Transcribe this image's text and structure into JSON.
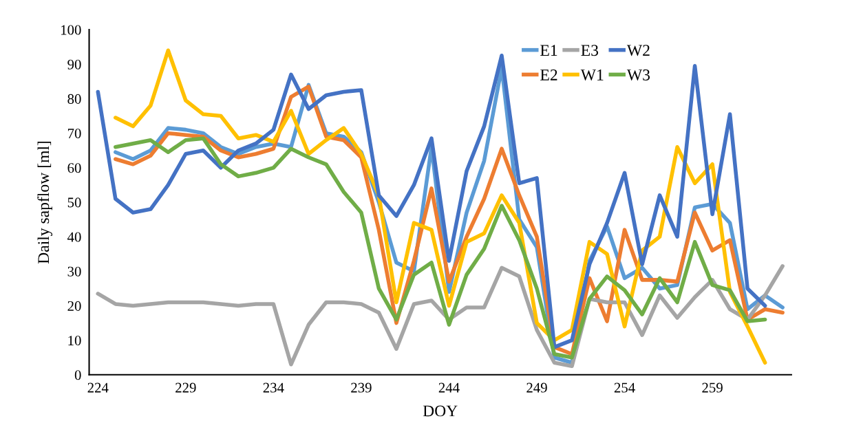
{
  "chart_data": {
    "type": "line",
    "xlabel": "DOY",
    "ylabel": "Daily sapflow [ml]",
    "x": [
      224,
      225,
      226,
      227,
      228,
      229,
      230,
      231,
      232,
      233,
      234,
      235,
      236,
      237,
      238,
      239,
      240,
      241,
      242,
      243,
      244,
      245,
      246,
      247,
      248,
      249,
      250,
      251,
      252,
      253,
      254,
      255,
      256,
      257,
      258,
      259,
      260,
      261,
      262,
      263
    ],
    "xlim": [
      223.5,
      263.5
    ],
    "xticks": [
      224,
      229,
      234,
      239,
      244,
      249,
      254,
      259
    ],
    "ylim": [
      0,
      100
    ],
    "yticks": [
      0,
      10,
      20,
      30,
      40,
      50,
      60,
      70,
      80,
      90,
      100
    ],
    "grid": false,
    "legend": "top right",
    "marker": "none",
    "line_style": "solid",
    "series": [
      {
        "name": "E1",
        "color": "#5b9bd5",
        "values": [
          null,
          64.5,
          62.5,
          65,
          71.5,
          71,
          70,
          66,
          64,
          66,
          67,
          66,
          84,
          70,
          69,
          64.5,
          50,
          32.5,
          30,
          66,
          24,
          47,
          62,
          89,
          45,
          37,
          5,
          3.5,
          33,
          43,
          28,
          31,
          25,
          26,
          48.5,
          49.5,
          44,
          19,
          23,
          19.5
        ]
      },
      {
        "name": "E2",
        "color": "#ed7d31",
        "values": [
          null,
          62.5,
          61,
          63.5,
          70,
          69.5,
          69,
          65,
          63,
          64,
          65.5,
          80.5,
          83.5,
          69,
          68,
          63,
          42,
          15,
          33,
          54,
          27,
          40,
          51,
          65.5,
          52,
          40,
          8,
          6,
          28,
          15.5,
          42,
          27.5,
          27.5,
          27,
          47,
          36,
          39,
          16,
          19,
          18
        ]
      },
      {
        "name": "E3",
        "color": "#a5a5a5",
        "values": [
          23.5,
          20.5,
          20,
          20.5,
          21,
          21,
          21,
          20.5,
          20,
          20.5,
          20.5,
          3,
          14.5,
          21,
          21,
          20.5,
          18,
          7.5,
          20.5,
          21.5,
          16,
          19.5,
          19.5,
          31,
          28.5,
          13,
          3.5,
          2.5,
          22,
          21,
          21,
          11.5,
          23,
          16.5,
          22.5,
          27.5,
          19,
          16,
          23,
          31.5
        ]
      },
      {
        "name": "W1",
        "color": "#ffc000",
        "values": [
          null,
          74.5,
          72,
          78,
          94,
          79.5,
          75.5,
          75,
          68.5,
          69.5,
          67.5,
          76.5,
          64,
          68,
          71.5,
          64,
          52,
          21,
          44,
          42,
          20,
          38.5,
          41,
          52,
          44,
          15,
          10,
          13,
          38.5,
          35,
          14,
          36,
          40,
          66,
          55.5,
          61,
          24,
          14,
          3.5,
          null
        ]
      },
      {
        "name": "W2",
        "color": "#4472c4",
        "values": [
          82,
          51,
          47,
          48,
          55,
          64,
          65,
          60,
          65,
          67,
          71,
          87,
          77,
          81,
          82,
          82.5,
          52,
          46,
          55,
          68.5,
          33,
          59,
          72,
          92.5,
          55.5,
          57,
          8,
          10,
          32,
          44,
          58.5,
          32,
          52,
          40,
          89.5,
          46.5,
          75.5,
          25,
          20,
          null
        ]
      },
      {
        "name": "W3",
        "color": "#70ad47",
        "values": [
          null,
          66,
          67,
          68,
          64.5,
          68,
          68.5,
          61,
          57.5,
          58.5,
          60,
          65.5,
          63,
          61,
          53,
          47,
          25,
          16,
          29,
          32.5,
          14.5,
          29,
          36.5,
          49,
          39,
          25,
          6,
          5,
          22,
          28.5,
          24.5,
          17.5,
          28,
          21,
          38.5,
          26,
          24.5,
          15.5,
          16,
          null
        ]
      }
    ]
  }
}
